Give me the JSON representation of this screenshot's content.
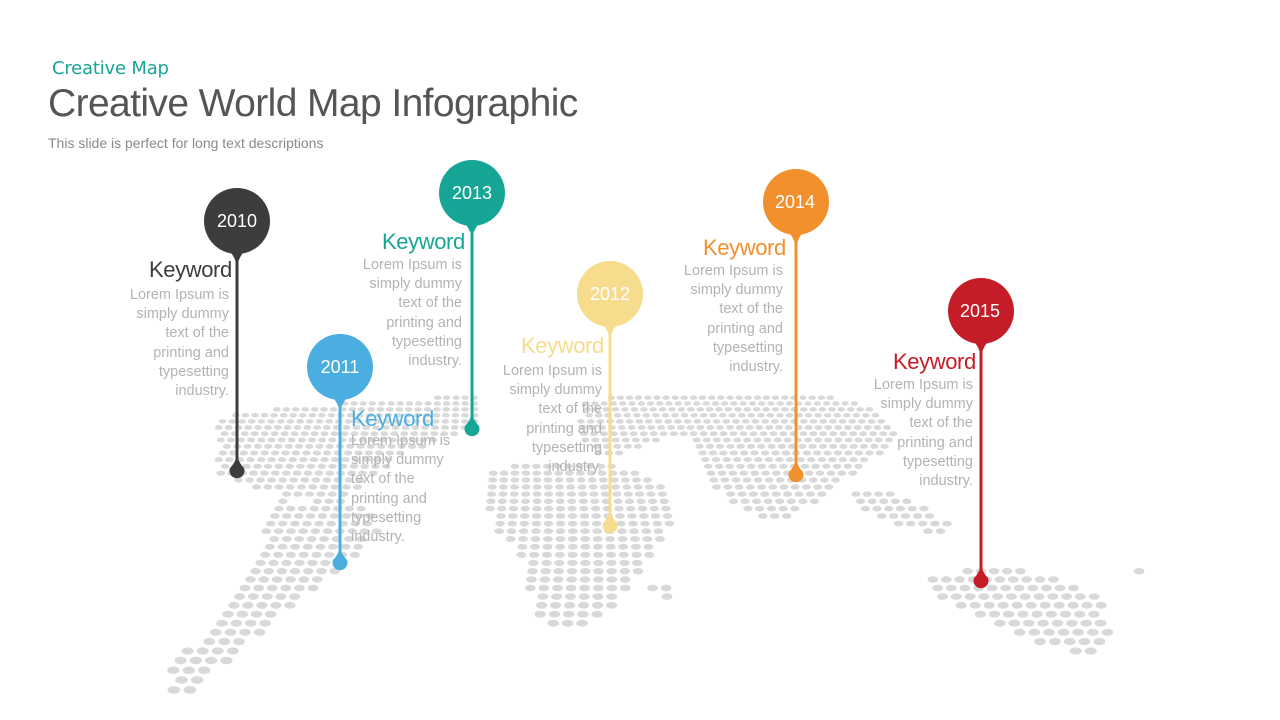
{
  "header": {
    "subtitle": "Creative Map",
    "title": "Creative World Map Infographic",
    "tagline": "This slide is perfect for long text descriptions"
  },
  "markers": [
    {
      "year": "2010",
      "keyword": "Keyword",
      "description": "Lorem Ipsum is simply dummy text of the printing and typesetting industry.",
      "color": "#3d3d3d"
    },
    {
      "year": "2011",
      "keyword": "Keyword",
      "description": "Lorem Ipsum is simply dummy text of the printing and typesetting industry.",
      "color": "#4aaee0"
    },
    {
      "year": "2013",
      "keyword": "Keyword",
      "description": "Lorem Ipsum is simply dummy text of the printing and typesetting industry.",
      "color": "#17a596"
    },
    {
      "year": "2012",
      "keyword": "Keyword",
      "description": "Lorem Ipsum is simply dummy text of the printing and typesetting industry.",
      "color": "#f8dc8e"
    },
    {
      "year": "2014",
      "keyword": "Keyword",
      "description": "Lorem Ipsum is simply dummy text of the printing and typesetting industry.",
      "color": "#f2902e"
    },
    {
      "year": "2015",
      "keyword": "Keyword",
      "description": "Lorem Ipsum is simply dummy text of the printing and typesetting industry.",
      "color": "#c51d27"
    }
  ],
  "colors": {
    "map_dots": "#d9d9d9",
    "description_text": "#b3b3b3"
  }
}
